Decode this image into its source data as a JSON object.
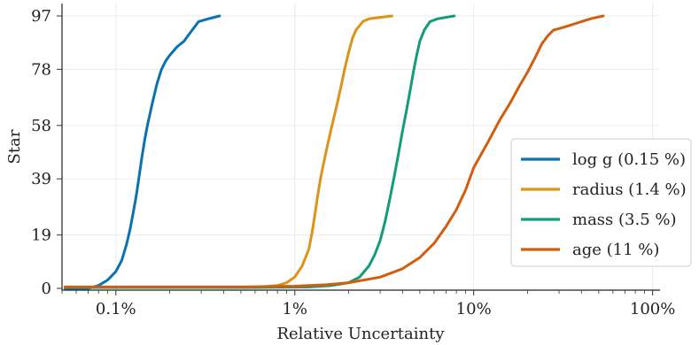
{
  "chart_data": {
    "type": "line",
    "title": "",
    "xlabel": "Relative Uncertainty",
    "ylabel": "Star",
    "xscale": "log",
    "xlim": [
      0.0005,
      1.1
    ],
    "ylim": [
      0,
      97
    ],
    "xticks": [
      {
        "value": 0.001,
        "label": "0.1%"
      },
      {
        "value": 0.01,
        "label": "1%"
      },
      {
        "value": 0.1,
        "label": "10%"
      },
      {
        "value": 1,
        "label": "100%"
      }
    ],
    "yticks": [
      0,
      19,
      39,
      58,
      78,
      97
    ],
    "grid": true,
    "legend_position": "lower-right",
    "series": [
      {
        "name": "log g (0.15 %)",
        "color": "#0a72b0",
        "points": [
          [
            0.00052,
            0
          ],
          [
            0.0007,
            0
          ],
          [
            0.0008,
            1
          ],
          [
            0.0009,
            3
          ],
          [
            0.001,
            6
          ],
          [
            0.00108,
            10
          ],
          [
            0.00115,
            16
          ],
          [
            0.0012,
            21
          ],
          [
            0.00125,
            27
          ],
          [
            0.0013,
            33
          ],
          [
            0.00135,
            40
          ],
          [
            0.0014,
            47
          ],
          [
            0.00145,
            53
          ],
          [
            0.0015,
            58
          ],
          [
            0.00155,
            62
          ],
          [
            0.0016,
            66
          ],
          [
            0.0017,
            73
          ],
          [
            0.0018,
            78
          ],
          [
            0.0019,
            81
          ],
          [
            0.002,
            83
          ],
          [
            0.0022,
            86
          ],
          [
            0.0024,
            88
          ],
          [
            0.0026,
            91
          ],
          [
            0.0029,
            95
          ],
          [
            0.0033,
            96
          ],
          [
            0.0038,
            97
          ]
        ]
      },
      {
        "name": "radius (1.4 %)",
        "color": "#dc9418",
        "points": [
          [
            0.00052,
            0.3
          ],
          [
            0.003,
            0.3
          ],
          [
            0.006,
            0.4
          ],
          [
            0.008,
            1
          ],
          [
            0.009,
            2
          ],
          [
            0.01,
            4
          ],
          [
            0.011,
            8
          ],
          [
            0.012,
            14
          ],
          [
            0.0125,
            20
          ],
          [
            0.013,
            27
          ],
          [
            0.0135,
            34
          ],
          [
            0.014,
            40
          ],
          [
            0.015,
            49
          ],
          [
            0.016,
            57
          ],
          [
            0.017,
            64
          ],
          [
            0.018,
            71
          ],
          [
            0.019,
            78
          ],
          [
            0.02,
            84
          ],
          [
            0.021,
            89
          ],
          [
            0.022,
            92
          ],
          [
            0.024,
            95
          ],
          [
            0.026,
            96
          ],
          [
            0.03,
            96.5
          ],
          [
            0.035,
            97
          ]
        ]
      },
      {
        "name": "mass (3.5 %)",
        "color": "#129c78",
        "points": [
          [
            0.00052,
            0.3
          ],
          [
            0.006,
            0.3
          ],
          [
            0.012,
            0.5
          ],
          [
            0.016,
            1
          ],
          [
            0.02,
            2
          ],
          [
            0.023,
            4
          ],
          [
            0.026,
            8
          ],
          [
            0.028,
            12
          ],
          [
            0.03,
            17
          ],
          [
            0.032,
            24
          ],
          [
            0.034,
            32
          ],
          [
            0.036,
            40
          ],
          [
            0.038,
            48
          ],
          [
            0.04,
            56
          ],
          [
            0.042,
            63
          ],
          [
            0.044,
            70
          ],
          [
            0.046,
            77
          ],
          [
            0.048,
            83
          ],
          [
            0.05,
            88
          ],
          [
            0.053,
            92
          ],
          [
            0.057,
            95
          ],
          [
            0.063,
            96
          ],
          [
            0.07,
            96.5
          ],
          [
            0.078,
            97
          ]
        ]
      },
      {
        "name": "age (11 %)",
        "color": "#d05e0e",
        "points": [
          [
            0.00052,
            0.5
          ],
          [
            0.005,
            0.5
          ],
          [
            0.01,
            0.8
          ],
          [
            0.015,
            1.3
          ],
          [
            0.02,
            2
          ],
          [
            0.03,
            4
          ],
          [
            0.04,
            7
          ],
          [
            0.05,
            11
          ],
          [
            0.06,
            16
          ],
          [
            0.07,
            22
          ],
          [
            0.08,
            28
          ],
          [
            0.09,
            35
          ],
          [
            0.1,
            43
          ],
          [
            0.12,
            52
          ],
          [
            0.14,
            60
          ],
          [
            0.16,
            66
          ],
          [
            0.18,
            72
          ],
          [
            0.2,
            77
          ],
          [
            0.22,
            82
          ],
          [
            0.24,
            87
          ],
          [
            0.26,
            90
          ],
          [
            0.28,
            92
          ],
          [
            0.32,
            93
          ],
          [
            0.36,
            94
          ],
          [
            0.4,
            95
          ],
          [
            0.45,
            96
          ],
          [
            0.53,
            97
          ]
        ]
      }
    ]
  }
}
